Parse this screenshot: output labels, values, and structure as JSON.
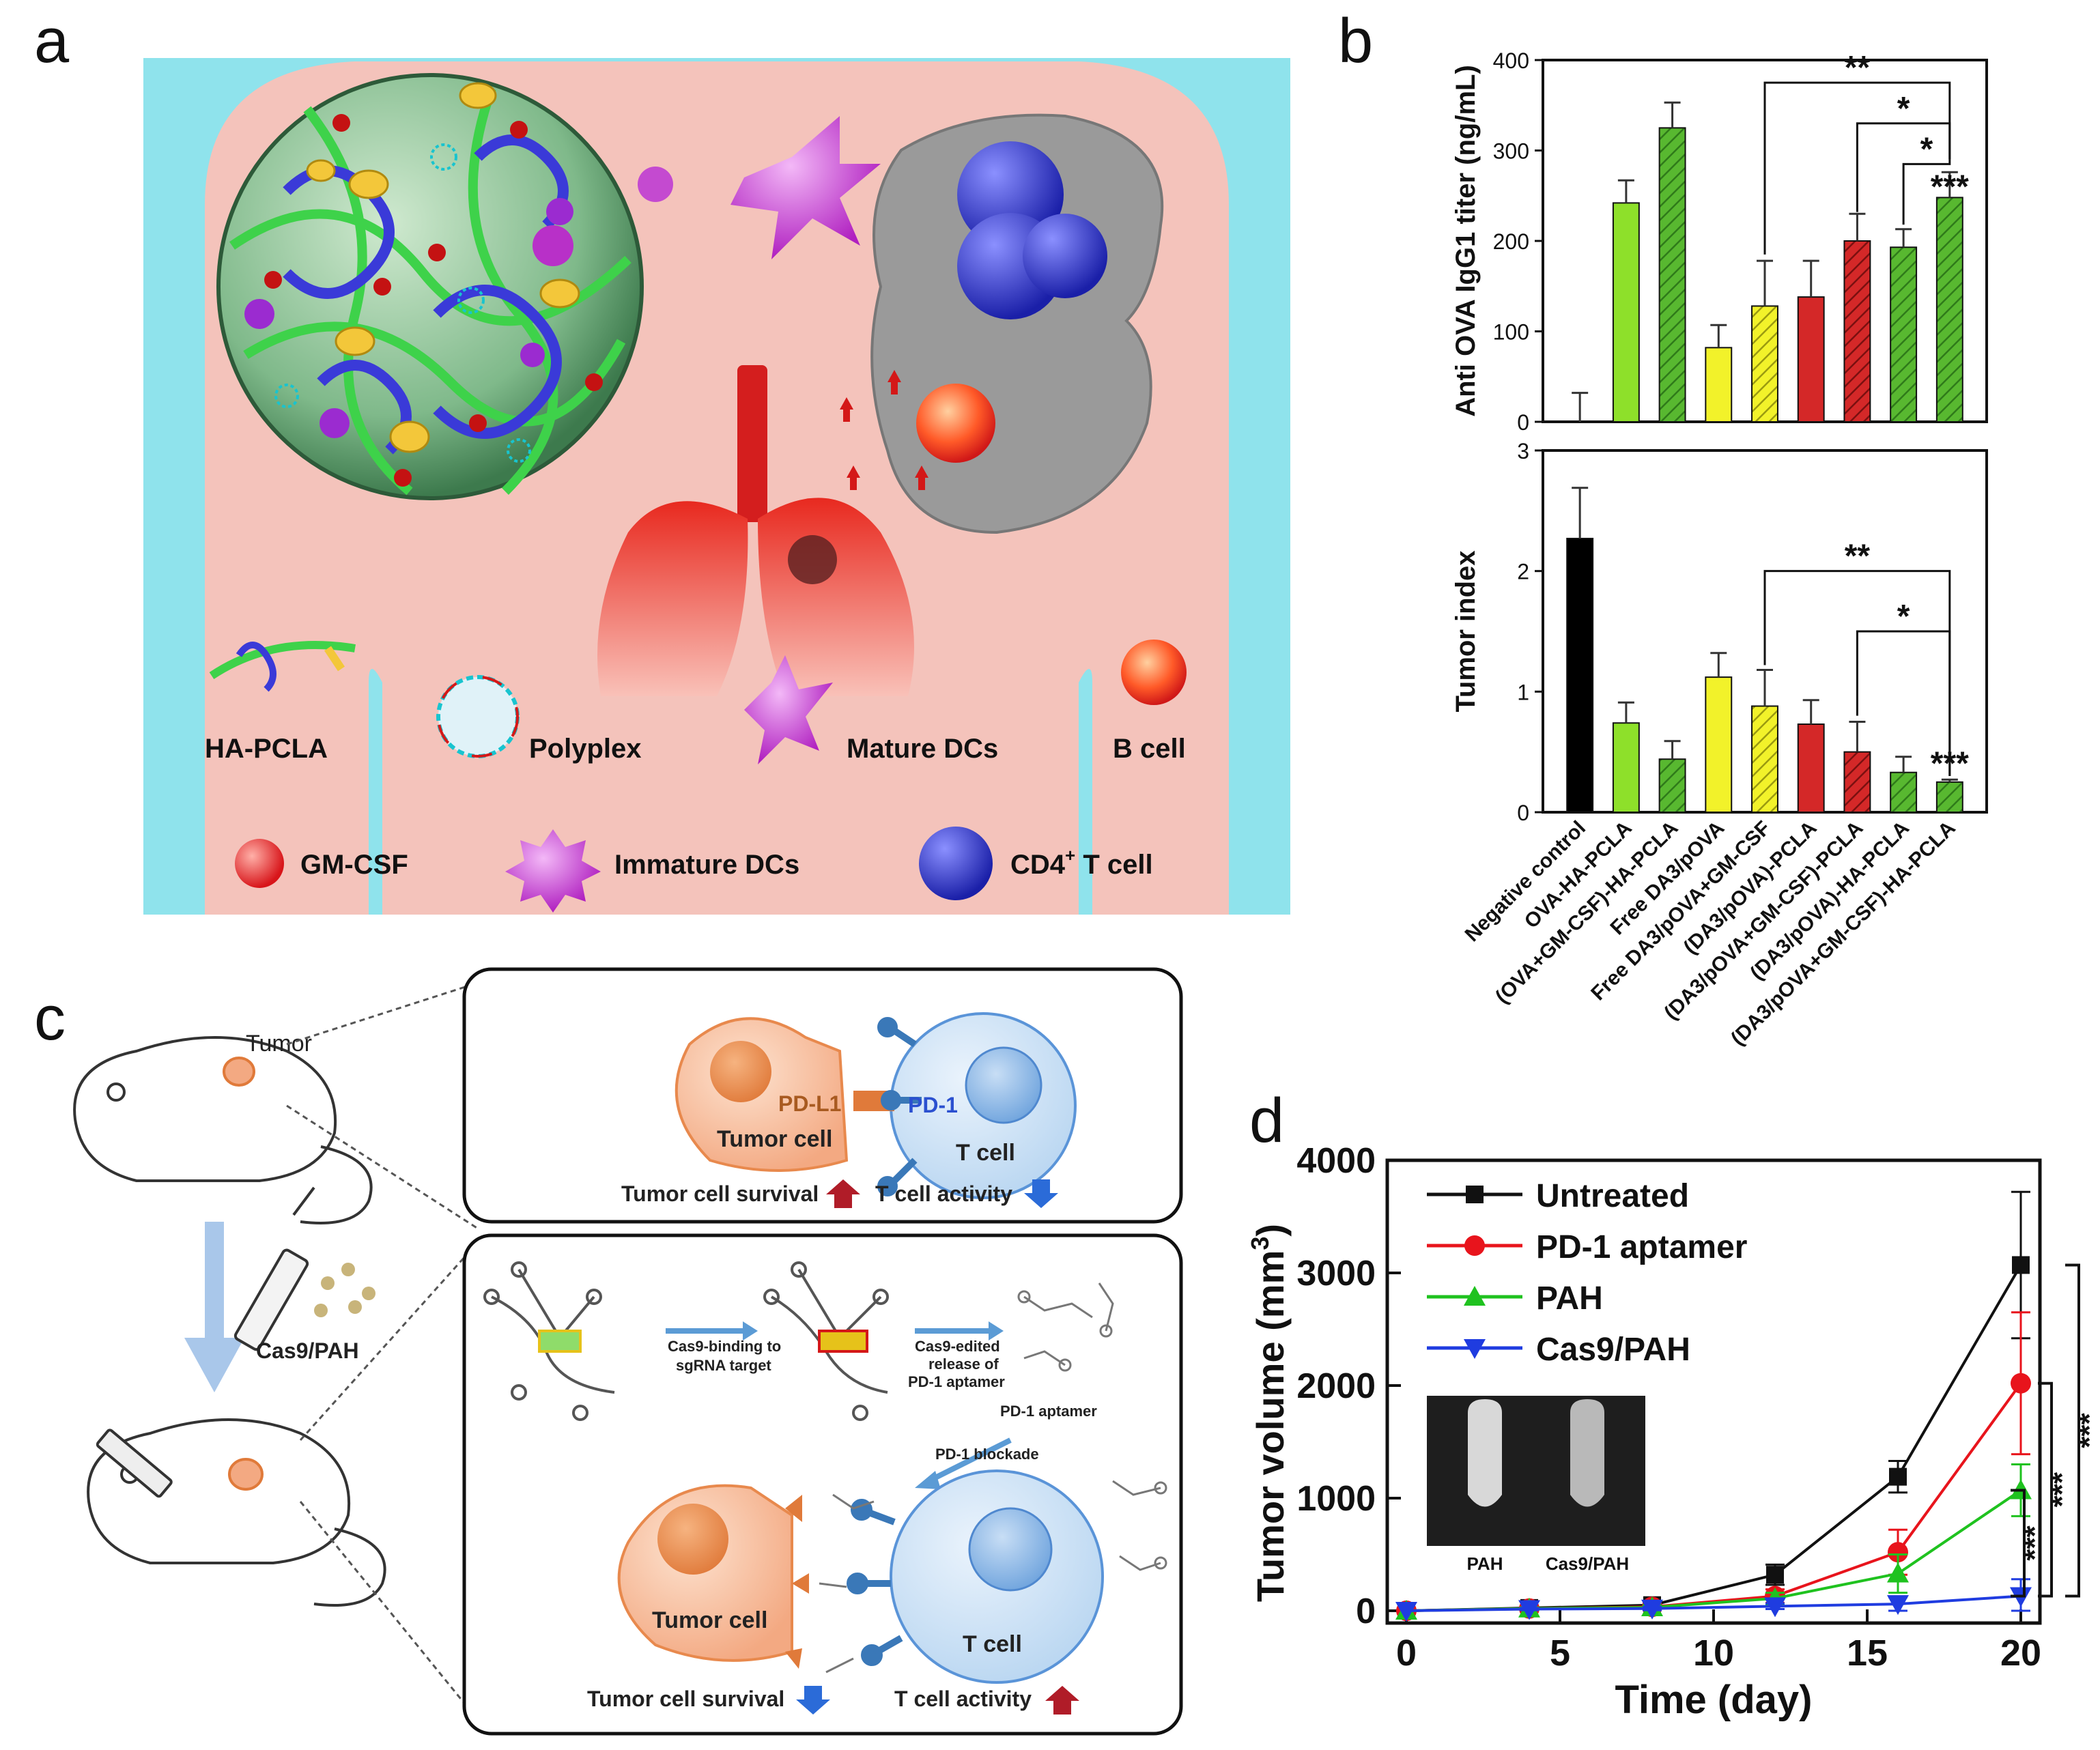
{
  "panels": {
    "a": "a",
    "b": "b",
    "c": "c",
    "d": "d"
  },
  "panel_a": {
    "legend": {
      "ha_pcla": "HA-PCLA",
      "polyplex": "Polyplex",
      "mature_dcs": "Mature DCs",
      "b_cell": "B cell",
      "gm_csf": "GM-CSF",
      "immature_dcs": "Immature DCs",
      "cd4_t_cell": "CD4",
      "cd4_sup": "+",
      "cd4_suffix": " T cell"
    },
    "colors": {
      "bg": "#f4c3bb",
      "edge": "#8fe3ec",
      "lung": "#e8291f",
      "spleen": "#9a9a9a",
      "dc": "#c844d0",
      "tcell": "#2f33d6"
    }
  },
  "panel_c": {
    "tumor_label": "Tumor",
    "pd_l1": "PD-L1",
    "pd_1": "PD-1",
    "tumor_cell": "Tumor cell",
    "t_cell": "T cell",
    "top_caption_survival": "Tumor cell survival",
    "top_caption_activity": "T cell activity",
    "injection_label": "Cas9/PAH",
    "step1_line1": "Cas9-binding to",
    "step1_line2": "sgRNA target",
    "step2_line1": "Cas9-edited",
    "step2_line2": "release of",
    "step2_line3": "PD-1 aptamer",
    "pd1_aptamer": "PD-1 aptamer",
    "pd1_blockade": "PD-1 blockade",
    "bottom_caption_survival": "Tumor cell survival",
    "bottom_caption_activity": "T cell activity"
  },
  "chart_data": [
    {
      "id": "b-top",
      "type": "bar",
      "ylabel": "Anti OVA IgG1 titer (ng/mL)",
      "ylim": [
        0,
        400
      ],
      "yticks": [
        0,
        100,
        200,
        300,
        400
      ],
      "categories": [
        "Negative control",
        "OVA-HA-PCLA",
        "(OVA+GM-CSF)-HA-PCLA",
        "Free DA3/pOVA",
        "Free DA3/pOVA+GM-CSF",
        "(DA3/pOVA)-PCLA",
        "(DA3/pOVA+GM-CSF)-PCLA",
        "(DA3/pOVA)-HA-PCLA",
        "(DA3/pOVA+GM-CSF)-HA-PCLA"
      ],
      "values": [
        0,
        242,
        325,
        82,
        128,
        138,
        200,
        193,
        248
      ],
      "errors": [
        32,
        25,
        28,
        25,
        50,
        40,
        30,
        20,
        28
      ],
      "colors": [
        "#000000",
        "#8ee02a",
        "#58b830",
        "#f2f22a",
        "#f2f22a",
        "#d42828",
        "#d42828",
        "#58b830",
        "#58b830"
      ],
      "hatched": [
        false,
        false,
        true,
        false,
        true,
        false,
        true,
        true,
        true
      ],
      "significance": [
        "**",
        "*",
        "*",
        "***"
      ]
    },
    {
      "id": "b-bottom",
      "type": "bar",
      "ylabel": "Tumor index",
      "ylim": [
        0,
        3
      ],
      "yticks": [
        0,
        1,
        2,
        3
      ],
      "categories": [
        "Negative control",
        "OVA-HA-PCLA",
        "(OVA+GM-CSF)-HA-PCLA",
        "Free DA3/pOVA",
        "Free DA3/pOVA+GM-CSF",
        "(DA3/pOVA)-PCLA",
        "(DA3/pOVA+GM-CSF)-PCLA",
        "(DA3/pOVA)-HA-PCLA",
        "(DA3/pOVA+GM-CSF)-HA-PCLA"
      ],
      "values": [
        2.27,
        0.74,
        0.44,
        1.12,
        0.88,
        0.73,
        0.5,
        0.33,
        0.25
      ],
      "errors": [
        0.42,
        0.17,
        0.15,
        0.2,
        0.3,
        0.2,
        0.25,
        0.13,
        0.02
      ],
      "colors": [
        "#000000",
        "#8ee02a",
        "#58b830",
        "#f2f22a",
        "#f2f22a",
        "#d42828",
        "#d42828",
        "#58b830",
        "#58b830"
      ],
      "hatched": [
        false,
        false,
        true,
        false,
        true,
        false,
        true,
        true,
        true
      ],
      "significance": [
        "**",
        "*",
        "***"
      ]
    },
    {
      "id": "d",
      "type": "line",
      "xlabel": "Time (day)",
      "ylabel": "Tumor volume (mm",
      "ylabel_sup": "3",
      "ylabel_end": ")",
      "xlim": [
        0,
        20
      ],
      "ylim": [
        0,
        4000
      ],
      "xticks": [
        0,
        5,
        10,
        15,
        20
      ],
      "yticks": [
        0,
        1000,
        2000,
        3000,
        4000
      ],
      "x": [
        0,
        4,
        8,
        12,
        16,
        20
      ],
      "series": [
        {
          "name": "Untreated",
          "color": "#111111",
          "marker": "square",
          "values": [
            0,
            25,
            50,
            320,
            1190,
            3070
          ],
          "errors": [
            0,
            15,
            30,
            90,
            140,
            650
          ]
        },
        {
          "name": "PD-1 aptamer",
          "color": "#e8141c",
          "marker": "circle",
          "values": [
            0,
            20,
            35,
            130,
            520,
            2020
          ],
          "errors": [
            0,
            10,
            25,
            60,
            200,
            630
          ]
        },
        {
          "name": "PAH",
          "color": "#1fc21f",
          "marker": "triangle-up",
          "values": [
            0,
            20,
            30,
            110,
            330,
            1070
          ],
          "errors": [
            0,
            10,
            20,
            50,
            170,
            230
          ]
        },
        {
          "name": "Cas9/PAH",
          "color": "#1f3ce0",
          "marker": "triangle-down",
          "values": [
            0,
            15,
            20,
            40,
            60,
            130
          ],
          "errors": [
            0,
            10,
            15,
            25,
            60,
            150
          ]
        }
      ],
      "inset_labels": [
        "PAH",
        "Cas9/PAH"
      ],
      "significance": [
        "***",
        "***",
        "***"
      ]
    }
  ]
}
